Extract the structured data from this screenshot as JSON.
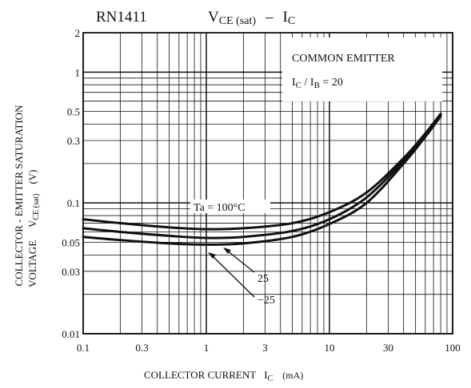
{
  "chart_data": {
    "type": "line",
    "part_number": "RN1411",
    "title": {
      "main": "V",
      "main_sub": "CE (sat)",
      "dash": "–",
      "right": "I",
      "right_sub": "C"
    },
    "xlabel": {
      "text": "COLLECTOR CURRENT",
      "symbol": "I",
      "symbol_sub": "C",
      "unit": "(mA)"
    },
    "ylabel": {
      "line1": "COLLECTOR - EMITTER SATURATION",
      "line2": "VOLTAGE",
      "symbol": "V",
      "symbol_sub": "CE (sat)",
      "unit": "(V)"
    },
    "x_scale": "log",
    "y_scale": "log",
    "xlim": [
      0.1,
      100
    ],
    "ylim": [
      0.01,
      2
    ],
    "x_ticks": [
      {
        "value": 0.1,
        "label": "0.1"
      },
      {
        "value": 0.3,
        "label": "0.3"
      },
      {
        "value": 1,
        "label": "1"
      },
      {
        "value": 3,
        "label": "3"
      },
      {
        "value": 10,
        "label": "10"
      },
      {
        "value": 30,
        "label": "30"
      },
      {
        "value": 100,
        "label": "100"
      }
    ],
    "y_ticks": [
      {
        "value": 0.01,
        "label": "0.01"
      },
      {
        "value": 0.03,
        "label": "0.03"
      },
      {
        "value": 0.05,
        "label": "0.05"
      },
      {
        "value": 0.1,
        "label": "0.1"
      },
      {
        "value": 0.3,
        "label": "0.3"
      },
      {
        "value": 0.5,
        "label": "0.5"
      },
      {
        "value": 1,
        "label": "1"
      },
      {
        "value": 2,
        "label": "2"
      }
    ],
    "grid": true,
    "condition_box": {
      "line1": "COMMON EMITTER",
      "line2_a": "I",
      "line2_a_sub": "C",
      "line2_b": " / I",
      "line2_b_sub": "B",
      "line2_c": " = 20"
    },
    "series": [
      {
        "label": "Ta = 100°C",
        "x": [
          0.1,
          0.2,
          0.5,
          1,
          2,
          5,
          10,
          20,
          40,
          60,
          80
        ],
        "y": [
          0.075,
          0.07,
          0.065,
          0.063,
          0.064,
          0.07,
          0.085,
          0.12,
          0.22,
          0.34,
          0.48
        ]
      },
      {
        "label": "25",
        "x": [
          0.1,
          0.2,
          0.5,
          1,
          2,
          5,
          10,
          20,
          40,
          60,
          80
        ],
        "y": [
          0.064,
          0.06,
          0.056,
          0.054,
          0.055,
          0.061,
          0.075,
          0.11,
          0.21,
          0.33,
          0.47
        ]
      },
      {
        "label": "−25",
        "x": [
          0.1,
          0.2,
          0.5,
          1,
          2,
          5,
          10,
          20,
          40,
          60,
          80
        ],
        "y": [
          0.055,
          0.052,
          0.049,
          0.048,
          0.049,
          0.055,
          0.069,
          0.1,
          0.2,
          0.32,
          0.46
        ]
      }
    ]
  }
}
